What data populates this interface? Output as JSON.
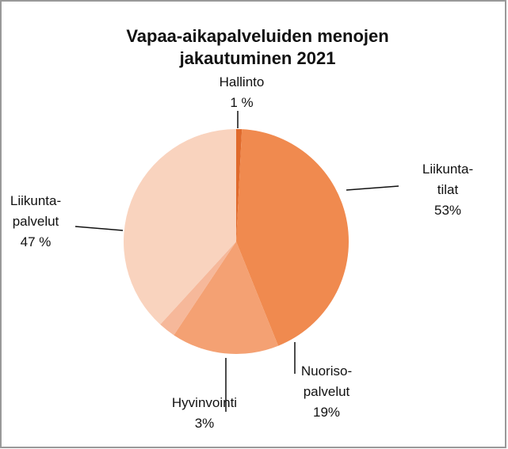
{
  "chart_data": {
    "type": "pie",
    "title": [
      "Vapaa-aikapalveluiden menojen",
      "jakautuminen 2021"
    ],
    "categories": [
      "Hallinto",
      "Liikunta-\ntilat",
      "Nuoriso-\npalvelut",
      "Hyvinvointi",
      "Liikunta-\npalvelut"
    ],
    "values": [
      1,
      53,
      19,
      3,
      47
    ],
    "value_labels": [
      "1 %",
      "53%",
      "19%",
      "3%",
      "47 %"
    ],
    "colors": [
      "#e06a2c",
      "#f08a4f",
      "#f4a173",
      "#f6b89a",
      "#f9d3be"
    ]
  }
}
